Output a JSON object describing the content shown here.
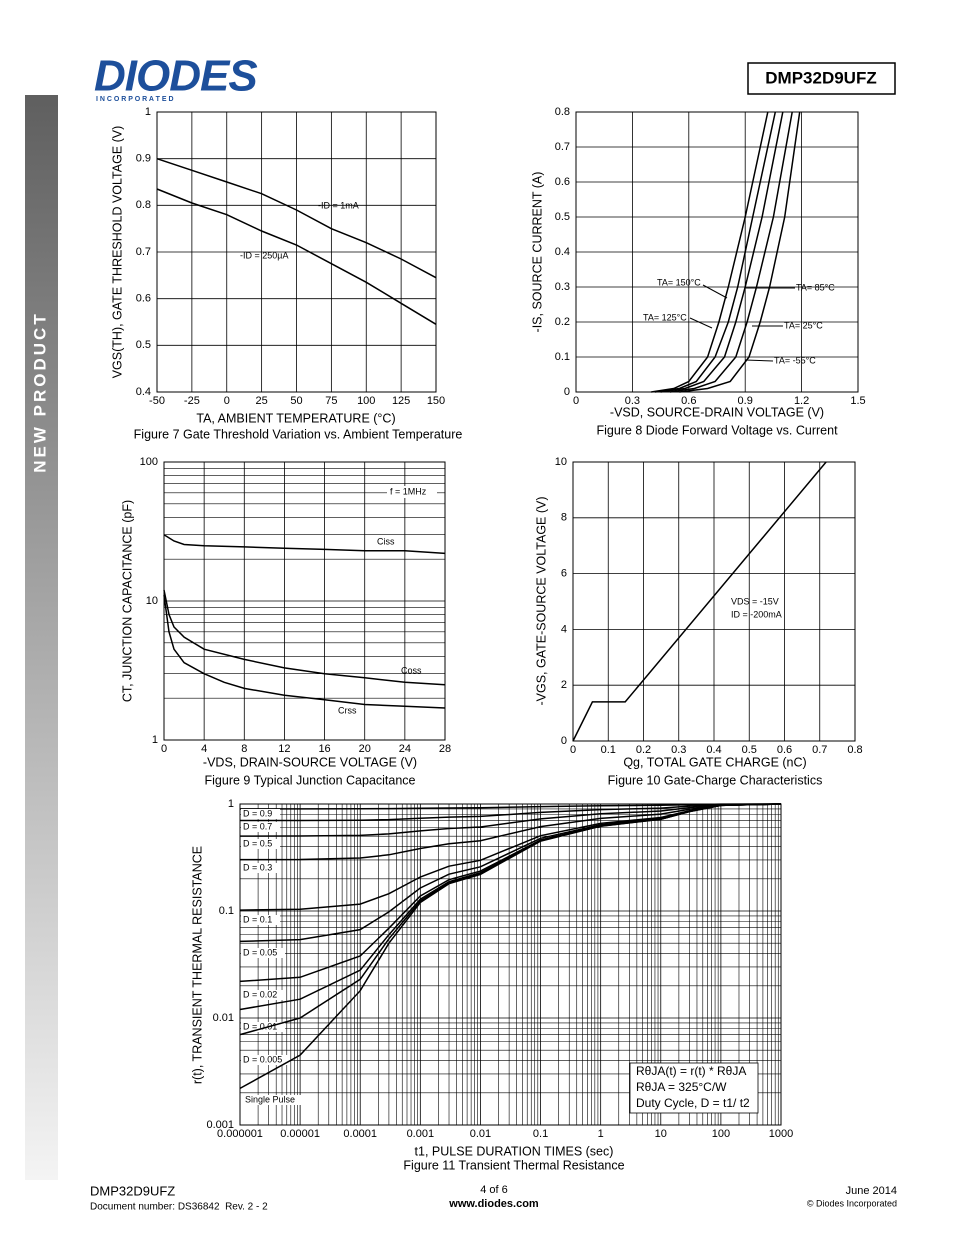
{
  "header": {
    "logo": "DIODES",
    "logo_sub": "I N C O R P O R A T E D",
    "part": "DMP32D9UFZ"
  },
  "sidebar": "NEW PRODUCT",
  "chart_data": [
    {
      "type": "line",
      "title": "Figure 7 Gate Threshold Variation vs. Ambient Temperature",
      "xlabel": "TA, AMBIENT TEMPERATURE (°C)",
      "ylabel": "VGS(TH), GATE THRESHOLD VOLTAGE (V)",
      "x": [
        -50,
        -25,
        0,
        25,
        50,
        75,
        100,
        125,
        150
      ],
      "series": [
        {
          "name": "-ID = 1mA",
          "color": "#000000",
          "values": [
            0.9,
            0.875,
            0.85,
            0.825,
            0.79,
            0.75,
            0.72,
            0.685,
            0.645
          ]
        },
        {
          "name": "-ID = 250µA",
          "color": "#000000",
          "values": [
            0.835,
            0.805,
            0.78,
            0.745,
            0.715,
            0.675,
            0.635,
            0.59,
            0.545
          ]
        }
      ],
      "xlim": [
        -50,
        150
      ],
      "xticks": [
        -50,
        -25,
        0,
        25,
        50,
        75,
        100,
        125,
        150
      ],
      "ylim": [
        0.4,
        1
      ],
      "yticks": [
        0.4,
        0.5,
        0.6,
        0.7,
        0.8,
        0.9,
        1
      ],
      "grid": true
    },
    {
      "type": "line",
      "title": "Figure 8 Diode Forward Voltage vs. Current",
      "xlabel": "-VSD, SOURCE-DRAIN VOLTAGE (V)",
      "ylabel": "-IS, SOURCE CURRENT (A)",
      "series": [
        {
          "name": "TA= 150°C",
          "color": "#000000",
          "x": [
            0.4,
            0.52,
            0.6,
            0.7,
            0.76,
            0.81,
            0.9,
            1.02
          ],
          "values": [
            0,
            0.01,
            0.03,
            0.1,
            0.2,
            0.3,
            0.5,
            0.8
          ]
        },
        {
          "name": "TA= 125°C",
          "color": "#000000",
          "x": [
            0.42,
            0.55,
            0.64,
            0.74,
            0.81,
            0.86,
            0.94,
            1.06
          ],
          "values": [
            0,
            0.01,
            0.03,
            0.1,
            0.2,
            0.3,
            0.5,
            0.8
          ]
        },
        {
          "name": "TA= 85°C",
          "color": "#000000",
          "x": [
            0.45,
            0.58,
            0.68,
            0.79,
            0.85,
            0.9,
            0.99,
            1.1
          ],
          "values": [
            0,
            0.01,
            0.03,
            0.1,
            0.2,
            0.3,
            0.5,
            0.8
          ]
        },
        {
          "name": "TA= 25°C",
          "color": "#000000",
          "x": [
            0.5,
            0.63,
            0.74,
            0.85,
            0.91,
            0.96,
            1.05,
            1.15
          ],
          "values": [
            0,
            0.01,
            0.03,
            0.1,
            0.2,
            0.3,
            0.5,
            0.8
          ]
        },
        {
          "name": "TA= -55°C",
          "color": "#000000",
          "x": [
            0.55,
            0.7,
            0.82,
            0.92,
            0.98,
            1.03,
            1.11,
            1.19
          ],
          "values": [
            0,
            0.01,
            0.03,
            0.1,
            0.2,
            0.3,
            0.5,
            0.8
          ]
        }
      ],
      "xlim": [
        0,
        1.5
      ],
      "xticks": [
        0,
        0.3,
        0.6,
        0.9,
        1.2,
        1.5
      ],
      "ylim": [
        0,
        0.8
      ],
      "yticks": [
        0,
        0.1,
        0.2,
        0.3,
        0.4,
        0.5,
        0.6,
        0.7,
        0.8
      ],
      "grid": true
    },
    {
      "type": "line",
      "title": "Figure 9 Typical Junction Capacitance",
      "xlabel": "-VDS, DRAIN-SOURCE VOLTAGE (V)",
      "ylabel": "CT, JUNCTION CAPACITANCE (pF)",
      "annotations": [
        "f = 1MHz"
      ],
      "series": [
        {
          "name": "Ciss",
          "color": "#000000",
          "x": [
            0,
            1,
            2,
            4,
            8,
            12,
            16,
            20,
            24,
            28
          ],
          "values": [
            30,
            27,
            25.5,
            25,
            24.5,
            24,
            23.5,
            23,
            23,
            22
          ]
        },
        {
          "name": "Coss",
          "color": "#000000",
          "x": [
            0,
            0.5,
            1,
            2,
            4,
            8,
            12,
            16,
            20,
            24,
            28
          ],
          "values": [
            12,
            8,
            6.5,
            5.5,
            4.5,
            3.8,
            3.3,
            3,
            2.8,
            2.6,
            2.5
          ]
        },
        {
          "name": "Crss",
          "color": "#000000",
          "x": [
            0,
            0.5,
            1,
            2,
            4,
            6,
            8,
            12,
            16,
            20,
            24,
            28
          ],
          "values": [
            11,
            6,
            4.5,
            3.6,
            3,
            2.6,
            2.35,
            2.1,
            1.95,
            1.8,
            1.75,
            1.7
          ]
        }
      ],
      "xlim": [
        0,
        28
      ],
      "xticks": [
        0,
        4,
        8,
        12,
        16,
        20,
        24,
        28
      ],
      "ylim": [
        1,
        100
      ],
      "yticks": [
        1,
        10,
        100
      ],
      "ylog": true,
      "grid": true,
      "minor_grid": true
    },
    {
      "type": "line",
      "title": "Figure 10 Gate-Charge Characteristics",
      "xlabel": "Qg, TOTAL GATE CHARGE (nC)",
      "ylabel": "-VGS, GATE-SOURCE VOLTAGE (V)",
      "annotations": [
        "VDS = -15V",
        "ID = -200mA"
      ],
      "series": [
        {
          "color": "#000000",
          "x": [
            0,
            0.055,
            0.148,
            0.718
          ],
          "values": [
            0,
            1.4,
            1.4,
            10
          ]
        }
      ],
      "xlim": [
        0,
        0.8
      ],
      "xticks": [
        0,
        0.1,
        0.2,
        0.3,
        0.4,
        0.5,
        0.6,
        0.7,
        0.8
      ],
      "ylim": [
        0,
        10
      ],
      "yticks": [
        0,
        2,
        4,
        6,
        8,
        10
      ],
      "grid": true
    },
    {
      "type": "line",
      "title": "Figure 11 Transient Thermal Resistance",
      "xlabel": "t1, PULSE DURATION TIMES (sec)",
      "ylabel": "r(t), TRANSIENT THERMAL RESISTANCE",
      "annotations": [
        "RθJA(t) = r(t) * RθJA",
        "RθJA = 325°C/W",
        "Duty Cycle, D = t1/ t2"
      ],
      "x": [
        1e-06,
        1e-05,
        0.0001,
        0.0003,
        0.001,
        0.003,
        0.01,
        0.1,
        1,
        10,
        30,
        100,
        1000
      ],
      "series": [
        {
          "name": "D = 0.9",
          "color": "#000000",
          "values": [
            0.9,
            0.9,
            0.902,
            0.905,
            0.912,
            0.918,
            0.922,
            0.945,
            0.962,
            0.972,
            0.985,
            0.997,
            1
          ]
        },
        {
          "name": "D = 0.7",
          "color": "#000000",
          "values": [
            0.701,
            0.701,
            0.705,
            0.715,
            0.736,
            0.754,
            0.766,
            0.835,
            0.886,
            0.916,
            0.955,
            0.991,
            1
          ]
        },
        {
          "name": "D = 0.5",
          "color": "#000000",
          "values": [
            0.501,
            0.502,
            0.509,
            0.525,
            0.56,
            0.59,
            0.61,
            0.725,
            0.81,
            0.86,
            0.925,
            0.985,
            1
          ]
        },
        {
          "name": "D = 0.3",
          "color": "#000000",
          "values": [
            0.302,
            0.303,
            0.313,
            0.335,
            0.384,
            0.426,
            0.454,
            0.615,
            0.734,
            0.804,
            0.895,
            0.979,
            1
          ]
        },
        {
          "name": "D = 0.1",
          "color": "#000000",
          "values": [
            0.102,
            0.104,
            0.116,
            0.145,
            0.208,
            0.262,
            0.298,
            0.505,
            0.658,
            0.748,
            0.865,
            0.973,
            1
          ]
        },
        {
          "name": "D = 0.05",
          "color": "#000000",
          "values": [
            0.052,
            0.054,
            0.067,
            0.098,
            0.164,
            0.221,
            0.259,
            0.478,
            0.639,
            0.734,
            0.858,
            0.972,
            1
          ]
        },
        {
          "name": "D = 0.02",
          "color": "#000000",
          "values": [
            0.022,
            0.024,
            0.038,
            0.069,
            0.138,
            0.196,
            0.236,
            0.461,
            0.628,
            0.726,
            0.853,
            0.971,
            1
          ]
        },
        {
          "name": "D = 0.01",
          "color": "#000000",
          "values": [
            0.012,
            0.015,
            0.028,
            0.06,
            0.129,
            0.188,
            0.228,
            0.456,
            0.624,
            0.723,
            0.852,
            0.97,
            1
          ]
        },
        {
          "name": "D = 0.005",
          "color": "#000000",
          "values": [
            0.007,
            0.01,
            0.023,
            0.055,
            0.124,
            0.184,
            0.224,
            0.453,
            0.622,
            0.721,
            0.851,
            0.97,
            1
          ]
        },
        {
          "name": "Single Pulse",
          "color": "#000000",
          "values": [
            0.0022,
            0.0045,
            0.018,
            0.05,
            0.12,
            0.18,
            0.22,
            0.45,
            0.62,
            0.72,
            0.85,
            0.97,
            1
          ]
        }
      ],
      "xlim": [
        1e-06,
        1000
      ],
      "xticks": [
        1e-06,
        1e-05,
        0.0001,
        0.001,
        0.01,
        0.1,
        1,
        10,
        100,
        1000
      ],
      "xlog": true,
      "ylim": [
        0.001,
        1
      ],
      "yticks": [
        0.001,
        0.01,
        0.1,
        1
      ],
      "ylog": true,
      "grid": true,
      "minor_grid": true
    }
  ],
  "footer": {
    "part": "DMP32D9UFZ",
    "doc": "Document number: DS36842  Rev. 2 - 2",
    "page": "4 of 6",
    "url": "www.diodes.com",
    "date": "June 2014",
    "copyright": "© Diodes Incorporated"
  }
}
